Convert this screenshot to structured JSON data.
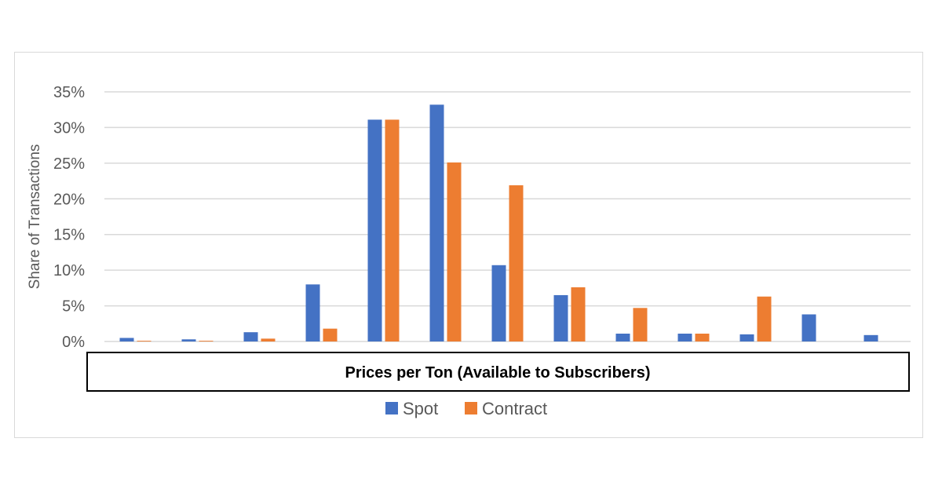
{
  "chart_data": {
    "type": "bar",
    "title": "",
    "xlabel": "Prices per Ton (Available to Subscribers)",
    "ylabel": "Share of Transactions",
    "ylim": [
      0,
      35
    ],
    "yticks": [
      0,
      5,
      10,
      15,
      20,
      25,
      30,
      35
    ],
    "ytick_labels": [
      "0%",
      "5%",
      "10%",
      "15%",
      "20%",
      "25%",
      "30%",
      "35%"
    ],
    "grid": true,
    "legend_position": "bottom",
    "category_count": 13,
    "series": [
      {
        "name": "Spot",
        "color": "#4472c4",
        "values": [
          0.5,
          0.3,
          1.3,
          8.0,
          31.1,
          33.2,
          10.7,
          6.5,
          1.1,
          1.1,
          1.0,
          3.8,
          0.9
        ]
      },
      {
        "name": "Contract",
        "color": "#ed7d31",
        "values": [
          0.1,
          0.1,
          0.4,
          1.8,
          31.1,
          25.1,
          21.9,
          7.6,
          4.7,
          1.1,
          6.3,
          0.0,
          0.0
        ]
      }
    ]
  }
}
